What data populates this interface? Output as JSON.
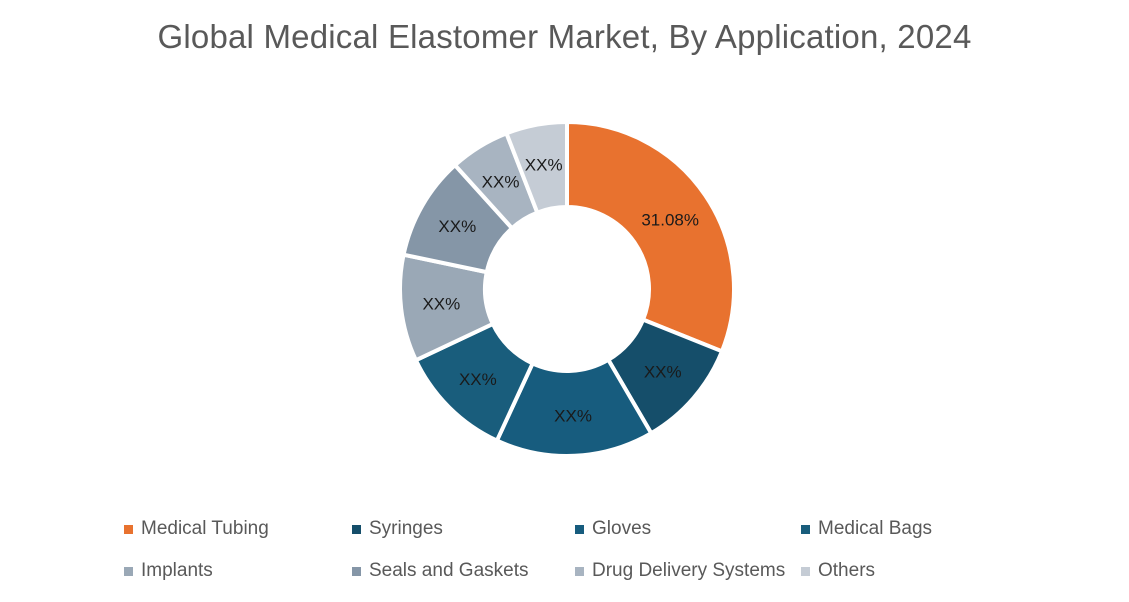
{
  "title": "Global Medical Elastomer Market, By Application, 2024",
  "chart_data": {
    "type": "pie",
    "subtype": "donut",
    "title": "Global Medical Elastomer Market, By Application, 2024",
    "categories": [
      "Medical Tubing",
      "Syringes",
      "Gloves",
      "Medical Bags",
      "Implants",
      "Seals and Gaskets",
      "Drug Delivery Systems",
      "Others"
    ],
    "values": [
      31.08,
      10.5,
      15.3,
      11.1,
      10.3,
      10.0,
      5.8,
      5.9
    ],
    "labels": [
      "31.08%",
      "XX%",
      "XX%",
      "XX%",
      "XX%",
      "XX%",
      "XX%",
      "XX%"
    ],
    "colors": [
      "#E8722F",
      "#154E6A",
      "#175C7E",
      "#195D7C",
      "#9AA8B6",
      "#8596A7",
      "#A8B4C1",
      "#C5CCD5"
    ],
    "legend_position": "bottom"
  },
  "legend": {
    "items": [
      {
        "label": "Medical Tubing",
        "color": "#E8722F"
      },
      {
        "label": "Syringes",
        "color": "#154E6A"
      },
      {
        "label": "Gloves",
        "color": "#175C7E"
      },
      {
        "label": "Medical Bags",
        "color": "#195D7C"
      },
      {
        "label": "Implants",
        "color": "#9AA8B6"
      },
      {
        "label": "Seals and Gaskets",
        "color": "#8596A7"
      },
      {
        "label": "Drug Delivery Systems",
        "color": "#A8B4C1"
      },
      {
        "label": "Others",
        "color": "#C5CCD5"
      }
    ]
  }
}
